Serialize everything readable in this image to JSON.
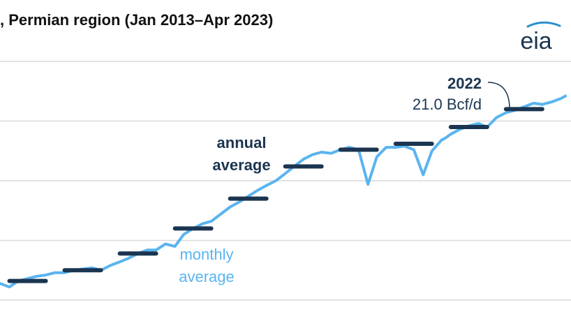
{
  "title": ", Permian region (Jan 2013–Apr 2023)",
  "logo_text": "eia",
  "colors": {
    "monthly": "#5ab4f0",
    "annual": "#1b3550",
    "grid": "#d9d9d9",
    "logo_arc": "#2a8fcb"
  },
  "labels": {
    "annual_line1": "annual",
    "annual_line2": "average",
    "monthly_line1": "monthly",
    "monthly_line2": "average",
    "callout_year": "2022",
    "callout_value": "21.0 Bcf/d"
  },
  "chart_data": {
    "type": "line",
    "title": ", Permian region (Jan 2013–Apr 2023)",
    "xlabel": "",
    "ylabel": "",
    "y_unit": "Bcf/d",
    "grid": true,
    "series": [
      {
        "name": "monthly average",
        "type": "line",
        "x": [
          2013.0,
          2013.17,
          2013.33,
          2013.5,
          2013.67,
          2013.83,
          2014.0,
          2014.17,
          2014.33,
          2014.5,
          2014.67,
          2014.83,
          2015.0,
          2015.17,
          2015.33,
          2015.5,
          2015.67,
          2015.83,
          2016.0,
          2016.17,
          2016.33,
          2016.5,
          2016.67,
          2016.83,
          2017.0,
          2017.17,
          2017.33,
          2017.5,
          2017.67,
          2017.83,
          2018.0,
          2018.17,
          2018.33,
          2018.5,
          2018.67,
          2018.83,
          2019.0,
          2019.17,
          2019.33,
          2019.5,
          2019.67,
          2019.83,
          2020.0,
          2020.17,
          2020.33,
          2020.5,
          2020.67,
          2020.83,
          2021.0,
          2021.08,
          2021.17,
          2021.33,
          2021.5,
          2021.67,
          2021.83,
          2022.0,
          2022.17,
          2022.33,
          2022.5,
          2022.67,
          2022.83,
          2023.0,
          2023.17,
          2023.25
        ],
        "y": [
          6.4,
          6.1,
          6.6,
          6.8,
          7.0,
          7.1,
          7.3,
          7.3,
          7.5,
          7.6,
          7.7,
          7.5,
          7.9,
          8.2,
          8.5,
          8.9,
          9.2,
          9.2,
          9.7,
          9.5,
          10.5,
          11.0,
          11.4,
          11.6,
          12.2,
          12.8,
          13.2,
          13.7,
          14.2,
          14.6,
          15.0,
          15.6,
          16.2,
          16.8,
          17.2,
          17.4,
          17.3,
          17.6,
          17.8,
          17.6,
          14.7,
          17.0,
          17.8,
          17.8,
          17.9,
          17.6,
          15.5,
          17.5,
          18.4,
          18.6,
          18.9,
          19.3,
          19.6,
          19.8,
          19.5,
          20.3,
          20.7,
          20.9,
          21.2,
          21.5,
          21.4,
          21.6,
          21.9,
          22.1
        ]
      },
      {
        "name": "annual average",
        "type": "step",
        "x": [
          2013,
          2014,
          2015,
          2016,
          2017,
          2018,
          2019,
          2020,
          2021,
          2022
        ],
        "y": [
          6.6,
          7.5,
          8.9,
          11.0,
          13.5,
          16.2,
          17.6,
          18.1,
          19.5,
          21.0
        ]
      }
    ]
  }
}
